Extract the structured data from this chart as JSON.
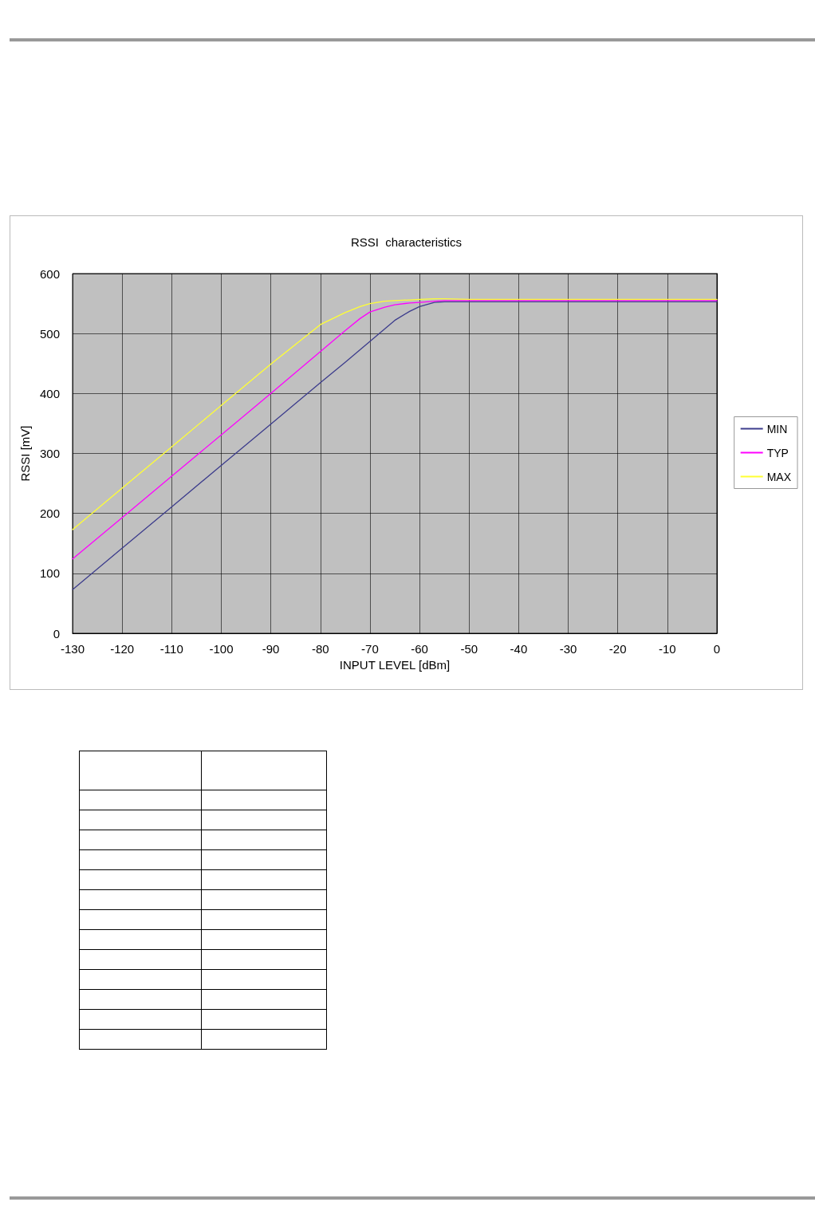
{
  "chart_data": {
    "type": "line",
    "title": "RSSI  characteristics",
    "xlabel": "INPUT LEVEL [dBm]",
    "ylabel": "RSSI [mV]",
    "x": [
      -130,
      -120,
      -110,
      -100,
      -90,
      -80,
      -75,
      -72,
      -70,
      -67,
      -65,
      -62,
      -60,
      -57,
      -55,
      -50,
      -40,
      -30,
      -20,
      -10,
      0
    ],
    "series": [
      {
        "name": "MIN",
        "color": "#3c3c8c",
        "values": [
          73,
          142,
          211,
          280,
          349,
          418,
          452,
          473,
          487,
          508,
          522,
          537,
          545,
          552,
          553,
          553,
          553,
          553,
          553,
          553,
          553
        ]
      },
      {
        "name": "TYP",
        "color": "#ff00ff",
        "values": [
          124,
          193,
          262,
          331,
          400,
          470,
          505,
          525,
          536,
          544,
          548,
          551,
          552,
          554,
          555,
          555,
          555,
          555,
          555,
          555,
          555
        ]
      },
      {
        "name": "MAX",
        "color": "#ffff33",
        "values": [
          173,
          242,
          311,
          380,
          449,
          515,
          535,
          545,
          550,
          554,
          555,
          556,
          557,
          558,
          558,
          557,
          557,
          557,
          557,
          557,
          557
        ]
      }
    ],
    "xlim": [
      -130,
      0
    ],
    "xticks": [
      -130,
      -120,
      -110,
      -100,
      -90,
      -80,
      -70,
      -60,
      -50,
      -40,
      -30,
      -20,
      -10,
      0
    ],
    "ylim": [
      0,
      600
    ],
    "yticks": [
      0,
      100,
      200,
      300,
      400,
      500,
      600
    ],
    "grid": true,
    "legend": "right",
    "marker": "none",
    "line_style": "solid"
  }
}
